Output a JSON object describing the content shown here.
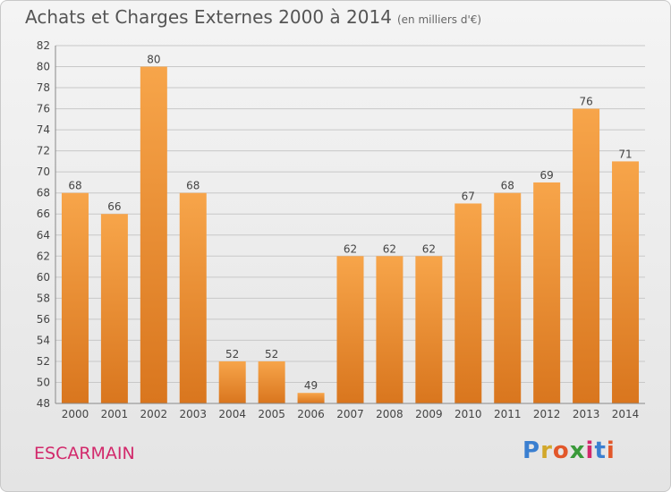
{
  "header": {
    "title": "Achats et Charges Externes 2000 à 2014",
    "subtitle": "(en milliers d'€)"
  },
  "footer": {
    "commune": "ESCARMAIN",
    "logo": {
      "letters": [
        "P",
        "r",
        "o",
        "x",
        "i",
        "t",
        "i"
      ],
      "colors": [
        "#3a7fd0",
        "#d2a82a",
        "#e2572a",
        "#3a9a3a",
        "#d2296b",
        "#3a7fd0",
        "#e2572a"
      ]
    }
  },
  "colors": {
    "bar_light": "#f7a54a",
    "bar_dark": "#d9761e",
    "grid": "#c8c8c8"
  },
  "chart_data": {
    "type": "bar",
    "title": "Achats et Charges Externes 2000 à 2014",
    "subtitle": "(en milliers d'€)",
    "categories": [
      "2000",
      "2001",
      "2002",
      "2003",
      "2004",
      "2005",
      "2006",
      "2007",
      "2008",
      "2009",
      "2010",
      "2011",
      "2012",
      "2013",
      "2014"
    ],
    "values": [
      68,
      66,
      80,
      68,
      52,
      52,
      49,
      62,
      62,
      62,
      67,
      68,
      69,
      76,
      71
    ],
    "xlabel": "",
    "ylabel": "",
    "ylim": [
      48,
      82
    ],
    "yticks": [
      48,
      50,
      52,
      54,
      56,
      58,
      60,
      62,
      64,
      66,
      68,
      70,
      72,
      74,
      76,
      78,
      80,
      82
    ],
    "grid": true,
    "legend": "none"
  }
}
